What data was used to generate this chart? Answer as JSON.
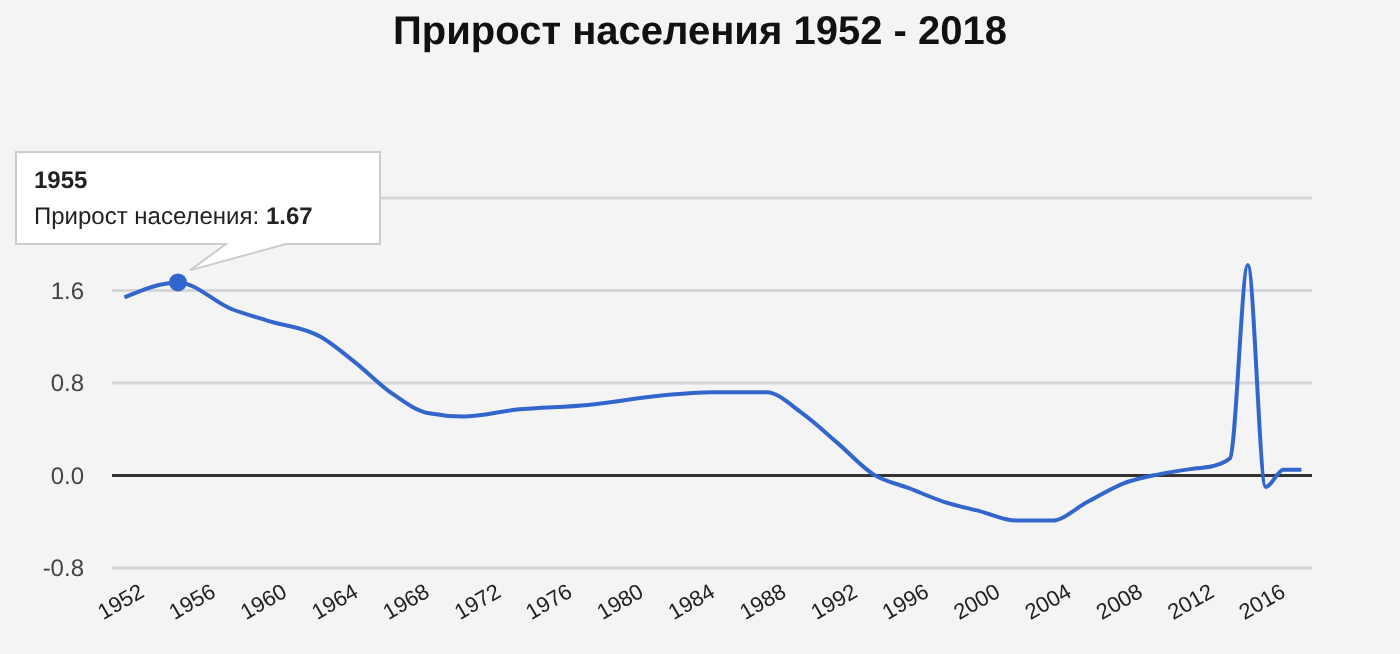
{
  "chart_data": {
    "type": "line",
    "title": "Прирост населения 1952 - 2018",
    "x": [
      1952,
      1954,
      1955,
      1958,
      1960,
      1963,
      1965,
      1967,
      1969,
      1971,
      1974,
      1978,
      1982,
      1985,
      1988,
      1990,
      1992,
      1994,
      1996,
      1998,
      2000,
      2002,
      2004,
      2006,
      2008,
      2010,
      2012,
      2013,
      2014,
      2015,
      2016,
      2017,
      2018
    ],
    "series": [
      {
        "color": "#3366cc",
        "values": [
          1.54,
          1.65,
          1.67,
          1.44,
          1.34,
          1.2,
          0.97,
          0.71,
          0.54,
          0.51,
          0.57,
          0.61,
          0.69,
          0.72,
          0.72,
          0.54,
          0.28,
          0.01,
          -0.11,
          -0.23,
          -0.31,
          -0.39,
          -0.39,
          -0.23,
          -0.07,
          0.01,
          0.06,
          0.08,
          0.15,
          1.82,
          -0.1,
          0.05,
          0.05
        ]
      }
    ],
    "xlim": [
      1951.3,
      2018.6
    ],
    "xticks": [
      1952,
      1956,
      1960,
      1964,
      1968,
      1972,
      1976,
      1980,
      1984,
      1988,
      1992,
      1996,
      2000,
      2004,
      2008,
      2012,
      2016
    ],
    "ylim": [
      -0.8,
      2.4
    ],
    "yticks": [
      -0.8,
      {
        "value": 0,
        "label": "0.0"
      },
      0.8,
      1.6,
      {
        "value": 2.4,
        "label": null
      }
    ],
    "ref_lines": [
      {
        "axis": "y",
        "value": 0,
        "color": "#333333"
      }
    ],
    "grid": "y",
    "marker": "none",
    "line_style": "solid",
    "annotations": [
      {
        "text": "1955\nПрирост населения: 1.67",
        "x": 1955,
        "y": 1.67
      }
    ]
  }
}
